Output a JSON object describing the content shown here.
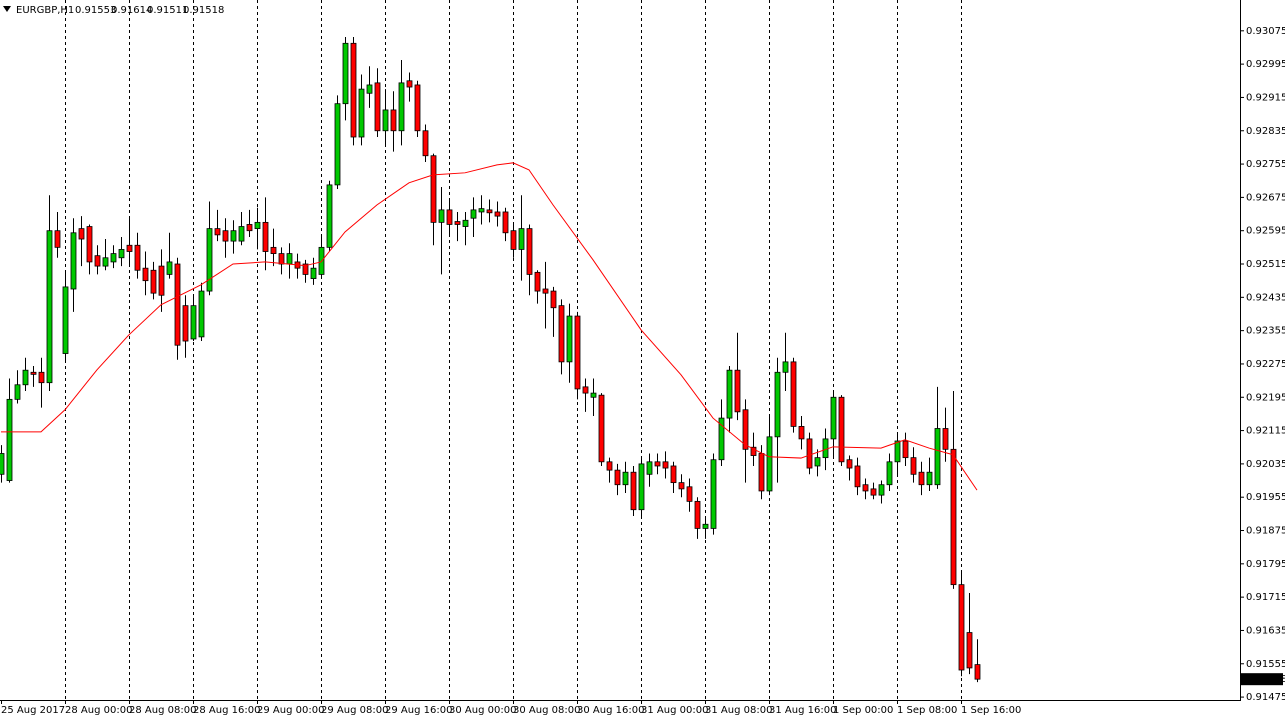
{
  "chart_data": {
    "type": "candlestick",
    "title": "EURGBP,H1",
    "categories": [
      "25 Aug 2017",
      null,
      null,
      null,
      null,
      null,
      null,
      null,
      "28 Aug 00:00",
      null,
      null,
      null,
      null,
      null,
      null,
      null,
      "28 Aug 08:00",
      null,
      null,
      null,
      null,
      null,
      null,
      null,
      "28 Aug 16:00",
      null,
      null,
      null,
      null,
      null,
      null,
      null,
      "29 Aug 00:00",
      null,
      null,
      null,
      null,
      null,
      null,
      null,
      "29 Aug 08:00",
      null,
      null,
      null,
      null,
      null,
      null,
      null,
      "29 Aug 16:00",
      null,
      null,
      null,
      null,
      null,
      null,
      null,
      "30 Aug 00:00",
      null,
      null,
      null,
      null,
      null,
      null,
      null,
      "30 Aug 08:00",
      null,
      null,
      null,
      null,
      null,
      null,
      null,
      "30 Aug 16:00",
      null,
      null,
      null,
      null,
      null,
      null,
      null,
      "31 Aug 00:00",
      null,
      null,
      null,
      null,
      null,
      null,
      null,
      "31 Aug 08:00",
      null,
      null,
      null,
      null,
      null,
      null,
      null,
      "31 Aug 16:00",
      null,
      null,
      null,
      null,
      null,
      null,
      null,
      "1 Sep 00:00",
      null,
      null,
      null,
      null,
      null,
      null,
      null,
      "1 Sep 08:00",
      null,
      null,
      null,
      null,
      null,
      null,
      null,
      "1 Sep 16:00",
      null,
      null
    ],
    "open": [
      0.9201,
      0.91995,
      0.9219,
      0.92225,
      0.92255,
      0.92255,
      0.9223,
      0.92595,
      0.923,
      0.92455,
      0.926,
      0.92605,
      0.92535,
      0.9251,
      0.9252,
      0.9253,
      0.9256,
      0.9256,
      0.92505,
      0.925,
      0.9251,
      0.9249,
      0.92515,
      0.92415,
      0.92335,
      0.9234,
      0.9245,
      0.926,
      0.92595,
      0.9257,
      0.9257,
      0.9261,
      0.926,
      0.92615,
      0.92555,
      0.9254,
      0.92515,
      0.9252,
      0.92515,
      0.9248,
      0.9249,
      0.92555,
      0.92705,
      0.929,
      0.93045,
      0.9282,
      0.92925,
      0.9295,
      0.92835,
      0.92885,
      0.92835,
      0.92955,
      0.92945,
      0.92835,
      0.92775,
      0.92615,
      0.92645,
      0.92617,
      0.92605,
      0.92625,
      0.9264,
      0.92645,
      0.9264,
      0.9264,
      0.92595,
      0.9255,
      0.926,
      0.92495,
      0.92455,
      0.9245,
      0.92415,
      0.9228,
      0.9239,
      0.9222,
      0.92195,
      0.922,
      0.9204,
      0.9202,
      0.91985,
      0.92015,
      0.91925,
      0.9201,
      0.9204,
      0.9204,
      0.9203,
      0.9199,
      0.9198,
      0.91945,
      0.9188,
      0.9188,
      0.92045,
      0.92145,
      0.9226,
      0.92165,
      0.92075,
      0.9206,
      0.9197,
      0.921,
      0.92255,
      0.9228,
      0.92125,
      0.92095,
      0.9203,
      0.9205,
      0.92095,
      0.92195,
      0.92045,
      0.9203,
      0.91985,
      0.91975,
      0.9196,
      0.91985,
      0.9204,
      0.9209,
      0.9205,
      0.92015,
      0.91985,
      0.91985,
      0.9212,
      0.9207,
      0.91745,
      0.9163,
      0.91553
    ],
    "high": [
      0.9208,
      0.9224,
      0.9226,
      0.9229,
      0.9227,
      0.9229,
      0.9268,
      0.9264,
      0.925,
      0.92625,
      0.9263,
      0.9261,
      0.9256,
      0.92575,
      0.9256,
      0.9258,
      0.92625,
      0.9259,
      0.92545,
      0.9252,
      0.9255,
      0.9259,
      0.9253,
      0.9244,
      0.9244,
      0.9247,
      0.92665,
      0.92645,
      0.92625,
      0.9262,
      0.9264,
      0.92645,
      0.9265,
      0.92675,
      0.926,
      0.92555,
      0.92565,
      0.9254,
      0.92525,
      0.9253,
      0.9258,
      0.92715,
      0.9292,
      0.9306,
      0.9306,
      0.9297,
      0.9299,
      0.92985,
      0.92935,
      0.9293,
      0.93005,
      0.92975,
      0.92955,
      0.9285,
      0.9278,
      0.927,
      0.9267,
      0.9264,
      0.9264,
      0.92675,
      0.9268,
      0.9267,
      0.92665,
      0.9265,
      0.9261,
      0.9268,
      0.9261,
      0.925,
      0.9252,
      0.9246,
      0.9243,
      0.9242,
      0.924,
      0.9224,
      0.9224,
      0.92205,
      0.9205,
      0.92035,
      0.9204,
      0.9203,
      0.9205,
      0.9206,
      0.9206,
      0.92065,
      0.9204,
      0.9201,
      0.92,
      0.91955,
      0.9191,
      0.9206,
      0.9219,
      0.9227,
      0.9235,
      0.9219,
      0.9211,
      0.9208,
      0.9215,
      0.9229,
      0.9235,
      0.9229,
      0.9215,
      0.9211,
      0.9207,
      0.9212,
      0.9221,
      0.922,
      0.92055,
      0.9205,
      0.92,
      0.9199,
      0.91995,
      0.9206,
      0.9211,
      0.9211,
      0.92075,
      0.9204,
      0.9205,
      0.9222,
      0.9217,
      0.9221,
      0.91775,
      0.91725,
      0.91614
    ],
    "low": [
      0.9199,
      0.9199,
      0.9218,
      0.9221,
      0.9222,
      0.9217,
      0.9221,
      0.9253,
      0.9228,
      0.924,
      0.9251,
      0.9249,
      0.9249,
      0.925,
      0.92505,
      0.9251,
      0.9251,
      0.9248,
      0.9244,
      0.9243,
      0.924,
      0.9248,
      0.92285,
      0.9229,
      0.9233,
      0.9233,
      0.9244,
      0.9257,
      0.9253,
      0.9254,
      0.9256,
      0.9258,
      0.9255,
      0.925,
      0.9251,
      0.9249,
      0.9248,
      0.9248,
      0.9247,
      0.92465,
      0.9248,
      0.92545,
      0.92695,
      0.9286,
      0.928,
      0.928,
      0.9289,
      0.9282,
      0.928,
      0.92785,
      0.928,
      0.92905,
      0.9282,
      0.9276,
      0.9256,
      0.9249,
      0.9258,
      0.9257,
      0.9256,
      0.9258,
      0.9261,
      0.92615,
      0.92605,
      0.9257,
      0.9253,
      0.92475,
      0.9244,
      0.9242,
      0.9236,
      0.9234,
      0.9225,
      0.9223,
      0.9219,
      0.9216,
      0.9215,
      0.9203,
      0.9199,
      0.9196,
      0.91965,
      0.9191,
      0.9191,
      0.9198,
      0.9201,
      0.92,
      0.91965,
      0.91955,
      0.9192,
      0.91855,
      0.91855,
      0.91865,
      0.9203,
      0.9211,
      0.9214,
      0.9199,
      0.9203,
      0.9195,
      0.9196,
      0.9199,
      0.9221,
      0.9211,
      0.9207,
      0.9201,
      0.92005,
      0.9202,
      0.9205,
      0.9203,
      0.91995,
      0.9196,
      0.9195,
      0.9195,
      0.9194,
      0.9197,
      0.9201,
      0.9203,
      0.9199,
      0.9196,
      0.9197,
      0.91975,
      0.9204,
      0.91735,
      0.91525,
      0.9153,
      0.91511
    ],
    "close": [
      0.9206,
      0.9219,
      0.92225,
      0.9226,
      0.9225,
      0.9223,
      0.92595,
      0.92555,
      0.9246,
      0.9259,
      0.92575,
      0.9252,
      0.9251,
      0.9253,
      0.9254,
      0.9255,
      0.92545,
      0.925,
      0.92475,
      0.92445,
      0.9244,
      0.9252,
      0.9232,
      0.9233,
      0.92415,
      0.9245,
      0.926,
      0.92585,
      0.9257,
      0.92595,
      0.92605,
      0.92595,
      0.92615,
      0.92545,
      0.9254,
      0.92515,
      0.9254,
      0.92505,
      0.9249,
      0.92505,
      0.92555,
      0.92705,
      0.929,
      0.93045,
      0.9282,
      0.92935,
      0.92945,
      0.92835,
      0.92885,
      0.92835,
      0.9295,
      0.9294,
      0.92835,
      0.92775,
      0.92615,
      0.92645,
      0.9261,
      0.9261,
      0.9262,
      0.92645,
      0.92648,
      0.92638,
      0.9263,
      0.9259,
      0.9255,
      0.926,
      0.9249,
      0.9245,
      0.92445,
      0.9241,
      0.9228,
      0.9239,
      0.92215,
      0.92205,
      0.92205,
      0.9204,
      0.9202,
      0.91985,
      0.92015,
      0.91925,
      0.92035,
      0.9204,
      0.9203,
      0.92025,
      0.9199,
      0.91975,
      0.91945,
      0.9188,
      0.9189,
      0.92045,
      0.92145,
      0.9226,
      0.9216,
      0.9207,
      0.92055,
      0.9197,
      0.921,
      0.92255,
      0.9228,
      0.92125,
      0.92095,
      0.92025,
      0.9205,
      0.92095,
      0.92195,
      0.9204,
      0.92025,
      0.9198,
      0.9197,
      0.9196,
      0.91985,
      0.9204,
      0.9209,
      0.9205,
      0.9201,
      0.91985,
      0.92015,
      0.9212,
      0.9207,
      0.91745,
      0.9154,
      0.91545,
      0.91518
    ],
    "colors": {
      "up": "#00c800",
      "down": "#ff0000",
      "wick": "#000000"
    },
    "overlay": {
      "type": "line",
      "color": "#ff0000",
      "x": [
        0,
        5,
        8,
        12,
        16,
        20,
        25,
        29,
        33,
        38,
        40,
        43,
        47,
        51,
        54,
        58,
        62,
        64,
        66,
        69,
        74,
        80,
        85,
        89,
        93,
        96,
        100,
        104,
        110,
        113,
        116,
        119,
        122
      ],
      "values": [
        0.92112,
        0.92112,
        0.92165,
        0.92261,
        0.92345,
        0.92417,
        0.92465,
        0.92515,
        0.9252,
        0.92511,
        0.9252,
        0.92592,
        0.92657,
        0.9271,
        0.92729,
        0.92734,
        0.92753,
        0.92758,
        0.92741,
        0.92657,
        0.92525,
        0.92357,
        0.92249,
        0.92145,
        0.92081,
        0.92052,
        0.92049,
        0.92076,
        0.92073,
        0.92093,
        0.92073,
        0.92057,
        0.91972
      ]
    },
    "ylim": [
      0.91468,
      0.93149
    ],
    "yticks": [
      0.91475,
      0.91555,
      0.91635,
      0.91715,
      0.91795,
      0.91875,
      0.91955,
      0.92035,
      0.92115,
      0.92195,
      0.92275,
      0.92355,
      0.92435,
      0.92515,
      0.92595,
      0.92675,
      0.92755,
      0.92835,
      0.92915,
      0.92995,
      0.93075
    ],
    "grid": true
  }
}
